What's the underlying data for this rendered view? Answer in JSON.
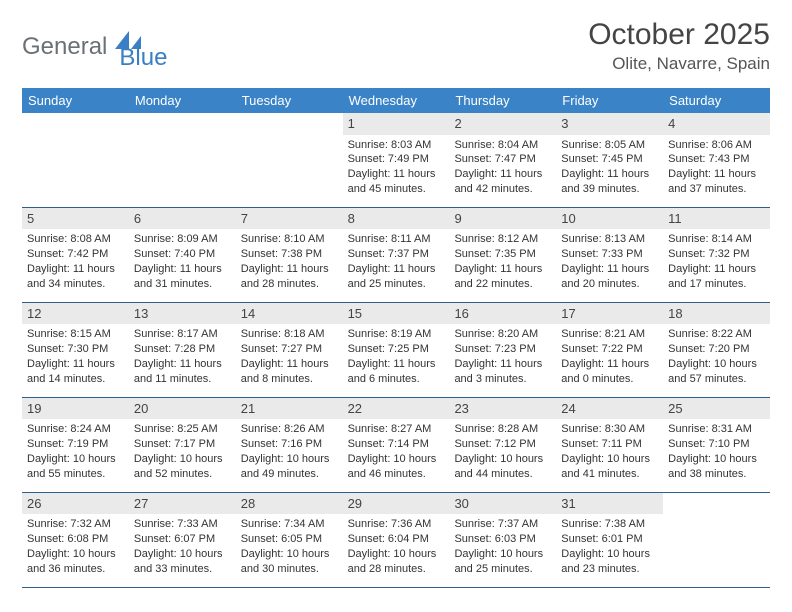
{
  "logo": {
    "part1": "General",
    "part2": "Blue"
  },
  "title": "October 2025",
  "location": "Olite, Navarre, Spain",
  "colors": {
    "header_bg": "#3a83c6",
    "header_text": "#ffffff",
    "daynum_bg": "#eaeaea",
    "week_border": "#2f5f8f",
    "logo_gray": "#6b7075",
    "logo_blue": "#3a7fc4",
    "body_text": "#333333"
  },
  "typography": {
    "title_fontsize": 30,
    "location_fontsize": 17,
    "dayhead_fontsize": 13,
    "cell_fontsize": 11
  },
  "day_headers": [
    "Sunday",
    "Monday",
    "Tuesday",
    "Wednesday",
    "Thursday",
    "Friday",
    "Saturday"
  ],
  "weeks": [
    [
      {
        "empty": true
      },
      {
        "empty": true
      },
      {
        "empty": true
      },
      {
        "day": "1",
        "sunrise": "Sunrise: 8:03 AM",
        "sunset": "Sunset: 7:49 PM",
        "daylight1": "Daylight: 11 hours",
        "daylight2": "and 45 minutes."
      },
      {
        "day": "2",
        "sunrise": "Sunrise: 8:04 AM",
        "sunset": "Sunset: 7:47 PM",
        "daylight1": "Daylight: 11 hours",
        "daylight2": "and 42 minutes."
      },
      {
        "day": "3",
        "sunrise": "Sunrise: 8:05 AM",
        "sunset": "Sunset: 7:45 PM",
        "daylight1": "Daylight: 11 hours",
        "daylight2": "and 39 minutes."
      },
      {
        "day": "4",
        "sunrise": "Sunrise: 8:06 AM",
        "sunset": "Sunset: 7:43 PM",
        "daylight1": "Daylight: 11 hours",
        "daylight2": "and 37 minutes."
      }
    ],
    [
      {
        "day": "5",
        "sunrise": "Sunrise: 8:08 AM",
        "sunset": "Sunset: 7:42 PM",
        "daylight1": "Daylight: 11 hours",
        "daylight2": "and 34 minutes."
      },
      {
        "day": "6",
        "sunrise": "Sunrise: 8:09 AM",
        "sunset": "Sunset: 7:40 PM",
        "daylight1": "Daylight: 11 hours",
        "daylight2": "and 31 minutes."
      },
      {
        "day": "7",
        "sunrise": "Sunrise: 8:10 AM",
        "sunset": "Sunset: 7:38 PM",
        "daylight1": "Daylight: 11 hours",
        "daylight2": "and 28 minutes."
      },
      {
        "day": "8",
        "sunrise": "Sunrise: 8:11 AM",
        "sunset": "Sunset: 7:37 PM",
        "daylight1": "Daylight: 11 hours",
        "daylight2": "and 25 minutes."
      },
      {
        "day": "9",
        "sunrise": "Sunrise: 8:12 AM",
        "sunset": "Sunset: 7:35 PM",
        "daylight1": "Daylight: 11 hours",
        "daylight2": "and 22 minutes."
      },
      {
        "day": "10",
        "sunrise": "Sunrise: 8:13 AM",
        "sunset": "Sunset: 7:33 PM",
        "daylight1": "Daylight: 11 hours",
        "daylight2": "and 20 minutes."
      },
      {
        "day": "11",
        "sunrise": "Sunrise: 8:14 AM",
        "sunset": "Sunset: 7:32 PM",
        "daylight1": "Daylight: 11 hours",
        "daylight2": "and 17 minutes."
      }
    ],
    [
      {
        "day": "12",
        "sunrise": "Sunrise: 8:15 AM",
        "sunset": "Sunset: 7:30 PM",
        "daylight1": "Daylight: 11 hours",
        "daylight2": "and 14 minutes."
      },
      {
        "day": "13",
        "sunrise": "Sunrise: 8:17 AM",
        "sunset": "Sunset: 7:28 PM",
        "daylight1": "Daylight: 11 hours",
        "daylight2": "and 11 minutes."
      },
      {
        "day": "14",
        "sunrise": "Sunrise: 8:18 AM",
        "sunset": "Sunset: 7:27 PM",
        "daylight1": "Daylight: 11 hours",
        "daylight2": "and 8 minutes."
      },
      {
        "day": "15",
        "sunrise": "Sunrise: 8:19 AM",
        "sunset": "Sunset: 7:25 PM",
        "daylight1": "Daylight: 11 hours",
        "daylight2": "and 6 minutes."
      },
      {
        "day": "16",
        "sunrise": "Sunrise: 8:20 AM",
        "sunset": "Sunset: 7:23 PM",
        "daylight1": "Daylight: 11 hours",
        "daylight2": "and 3 minutes."
      },
      {
        "day": "17",
        "sunrise": "Sunrise: 8:21 AM",
        "sunset": "Sunset: 7:22 PM",
        "daylight1": "Daylight: 11 hours",
        "daylight2": "and 0 minutes."
      },
      {
        "day": "18",
        "sunrise": "Sunrise: 8:22 AM",
        "sunset": "Sunset: 7:20 PM",
        "daylight1": "Daylight: 10 hours",
        "daylight2": "and 57 minutes."
      }
    ],
    [
      {
        "day": "19",
        "sunrise": "Sunrise: 8:24 AM",
        "sunset": "Sunset: 7:19 PM",
        "daylight1": "Daylight: 10 hours",
        "daylight2": "and 55 minutes."
      },
      {
        "day": "20",
        "sunrise": "Sunrise: 8:25 AM",
        "sunset": "Sunset: 7:17 PM",
        "daylight1": "Daylight: 10 hours",
        "daylight2": "and 52 minutes."
      },
      {
        "day": "21",
        "sunrise": "Sunrise: 8:26 AM",
        "sunset": "Sunset: 7:16 PM",
        "daylight1": "Daylight: 10 hours",
        "daylight2": "and 49 minutes."
      },
      {
        "day": "22",
        "sunrise": "Sunrise: 8:27 AM",
        "sunset": "Sunset: 7:14 PM",
        "daylight1": "Daylight: 10 hours",
        "daylight2": "and 46 minutes."
      },
      {
        "day": "23",
        "sunrise": "Sunrise: 8:28 AM",
        "sunset": "Sunset: 7:12 PM",
        "daylight1": "Daylight: 10 hours",
        "daylight2": "and 44 minutes."
      },
      {
        "day": "24",
        "sunrise": "Sunrise: 8:30 AM",
        "sunset": "Sunset: 7:11 PM",
        "daylight1": "Daylight: 10 hours",
        "daylight2": "and 41 minutes."
      },
      {
        "day": "25",
        "sunrise": "Sunrise: 8:31 AM",
        "sunset": "Sunset: 7:10 PM",
        "daylight1": "Daylight: 10 hours",
        "daylight2": "and 38 minutes."
      }
    ],
    [
      {
        "day": "26",
        "sunrise": "Sunrise: 7:32 AM",
        "sunset": "Sunset: 6:08 PM",
        "daylight1": "Daylight: 10 hours",
        "daylight2": "and 36 minutes."
      },
      {
        "day": "27",
        "sunrise": "Sunrise: 7:33 AM",
        "sunset": "Sunset: 6:07 PM",
        "daylight1": "Daylight: 10 hours",
        "daylight2": "and 33 minutes."
      },
      {
        "day": "28",
        "sunrise": "Sunrise: 7:34 AM",
        "sunset": "Sunset: 6:05 PM",
        "daylight1": "Daylight: 10 hours",
        "daylight2": "and 30 minutes."
      },
      {
        "day": "29",
        "sunrise": "Sunrise: 7:36 AM",
        "sunset": "Sunset: 6:04 PM",
        "daylight1": "Daylight: 10 hours",
        "daylight2": "and 28 minutes."
      },
      {
        "day": "30",
        "sunrise": "Sunrise: 7:37 AM",
        "sunset": "Sunset: 6:03 PM",
        "daylight1": "Daylight: 10 hours",
        "daylight2": "and 25 minutes."
      },
      {
        "day": "31",
        "sunrise": "Sunrise: 7:38 AM",
        "sunset": "Sunset: 6:01 PM",
        "daylight1": "Daylight: 10 hours",
        "daylight2": "and 23 minutes."
      },
      {
        "empty": true
      }
    ]
  ]
}
